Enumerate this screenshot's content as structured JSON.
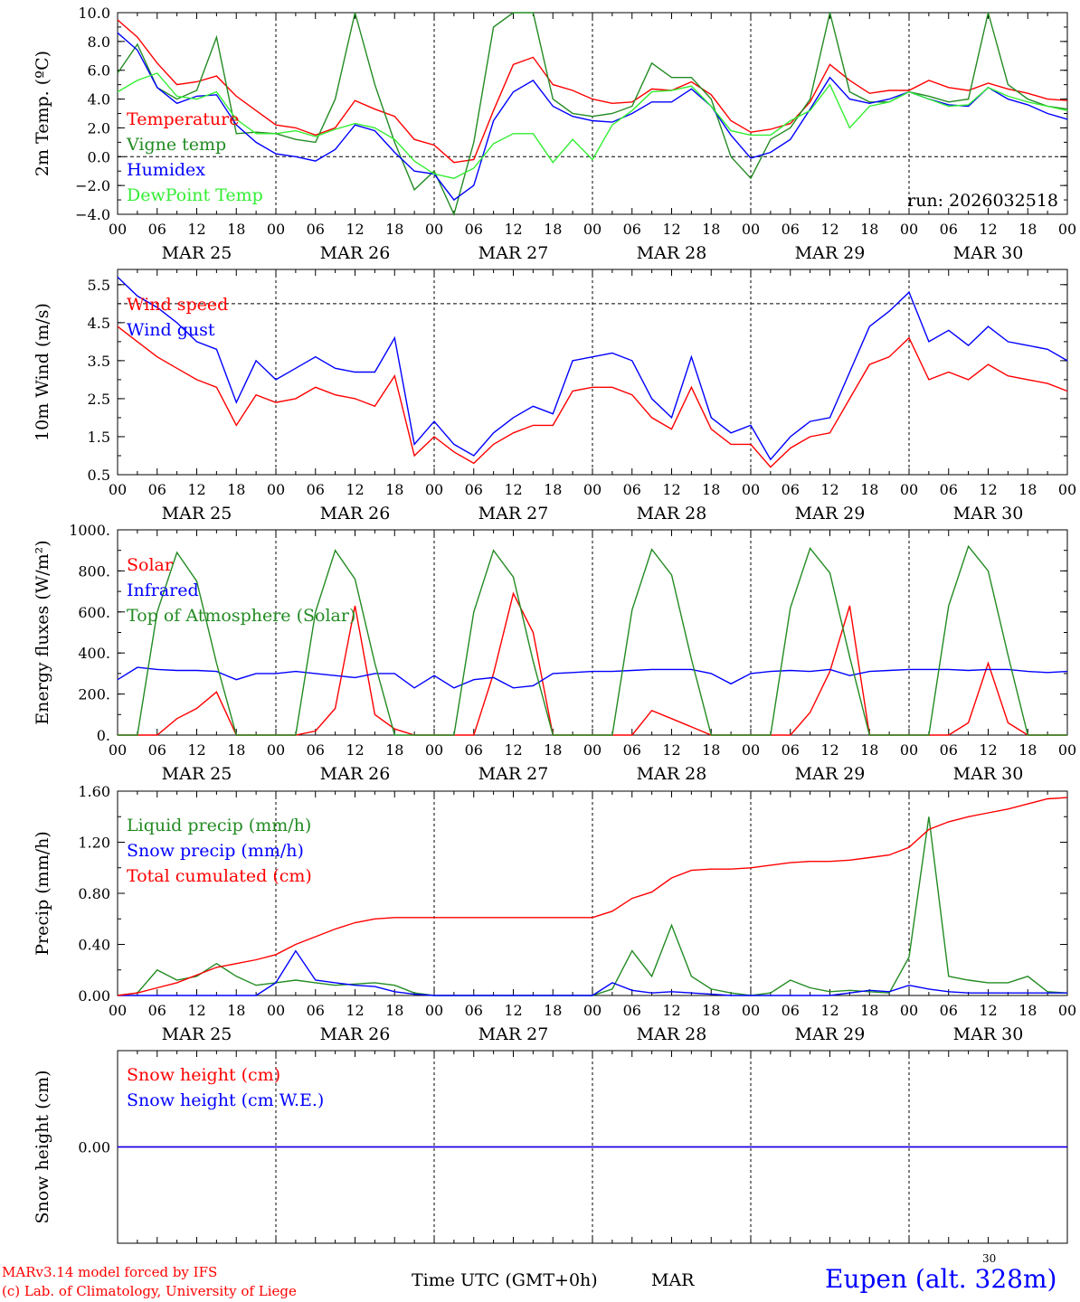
{
  "colors": {
    "red": "#ff0000",
    "green": "#228b22",
    "blue": "#0000ff",
    "lightgreen": "#33ee33",
    "black": "#000000"
  },
  "hour_ticks": [
    "00",
    "06",
    "12",
    "18",
    "00",
    "06",
    "12",
    "18",
    "00",
    "06",
    "12",
    "18",
    "00",
    "06",
    "12",
    "18",
    "00",
    "06",
    "12",
    "18",
    "00",
    "06",
    "12",
    "18",
    "00"
  ],
  "day_labels": [
    "MAR 25",
    "MAR 26",
    "MAR 27",
    "MAR 28",
    "MAR 29",
    "MAR 30"
  ],
  "footer": {
    "model": "MARv3.14 model forced by IFS",
    "lab": "(c) Lab. of Climatology, University of Liege",
    "time_axis": "Time UTC (GMT+0h)",
    "month": "MAR",
    "day_marker": "30",
    "station": "Eupen (alt. 328m)"
  },
  "chart_data": [
    {
      "type": "line",
      "ylabel": "2m Temp. (ºC)",
      "ylim": [
        -4,
        10
      ],
      "yticks": [
        "10.0",
        "8.0",
        "6.0",
        "4.0",
        "2.0",
        "0.0",
        "−2.0",
        "−4.0"
      ],
      "ytick_values": [
        10,
        8,
        6,
        4,
        2,
        0,
        -2,
        -4
      ],
      "ref_line": 0,
      "annotation": "run: 2026032518",
      "x_hours": [
        0,
        3,
        6,
        9,
        12,
        15,
        18,
        21,
        24,
        27,
        30,
        33,
        36,
        39,
        42,
        45,
        48,
        51,
        54,
        57,
        60,
        63,
        66,
        69,
        72,
        75,
        78,
        81,
        84,
        87,
        90,
        93,
        96,
        99,
        102,
        105,
        108,
        111,
        114,
        117,
        120,
        123,
        126,
        129,
        132,
        135,
        138,
        141,
        144
      ],
      "series": [
        {
          "name": "Temperature",
          "color": "red",
          "values": [
            9.5,
            8.3,
            6.5,
            5.0,
            5.2,
            5.6,
            4.2,
            3.2,
            2.2,
            2.0,
            1.5,
            2.0,
            3.9,
            3.3,
            2.8,
            1.2,
            0.8,
            -0.4,
            -0.2,
            3.2,
            6.4,
            6.9,
            5.0,
            4.6,
            4.0,
            3.7,
            3.8,
            4.7,
            4.6,
            5.2,
            4.3,
            2.5,
            1.7,
            1.9,
            2.3,
            3.8,
            6.4,
            5.3,
            4.4,
            4.6,
            4.6,
            5.3,
            4.8,
            4.6,
            5.1,
            4.7,
            4.4,
            4.0,
            3.9
          ]
        },
        {
          "name": "Vigne temp",
          "color": "green",
          "values": [
            5.8,
            7.8,
            4.8,
            4.0,
            4.6,
            8.3,
            1.6,
            1.7,
            1.6,
            1.2,
            1.0,
            4.0,
            10.0,
            5.0,
            1.0,
            -2.3,
            -1.0,
            -4.0,
            1.0,
            9.0,
            10.0,
            10.0,
            4.0,
            3.0,
            2.8,
            3.0,
            3.5,
            6.5,
            5.5,
            5.5,
            4.0,
            0.0,
            -1.5,
            1.2,
            2.0,
            4.0,
            10.0,
            4.5,
            3.8,
            3.8,
            4.5,
            4.2,
            3.8,
            4.0,
            10.0,
            5.0,
            4.0,
            3.5,
            3.3
          ]
        },
        {
          "name": "Humidex",
          "color": "blue",
          "values": [
            8.6,
            7.4,
            4.8,
            3.7,
            4.2,
            4.3,
            2.2,
            1.0,
            0.2,
            0.0,
            -0.3,
            0.5,
            2.2,
            1.8,
            0.3,
            -1.0,
            -1.2,
            -3.0,
            -2.0,
            2.5,
            4.5,
            5.3,
            3.5,
            2.8,
            2.5,
            2.4,
            3.0,
            3.8,
            3.8,
            4.7,
            3.5,
            1.5,
            -0.1,
            0.3,
            1.2,
            3.3,
            5.5,
            4.0,
            3.7,
            4.0,
            4.5,
            4.0,
            3.6,
            3.5,
            4.8,
            4.0,
            3.6,
            3.0,
            2.6
          ]
        },
        {
          "name": "DewPoint Temp",
          "color": "lightgreen",
          "values": [
            4.5,
            5.3,
            5.8,
            4.2,
            4.0,
            4.5,
            2.6,
            1.6,
            1.6,
            1.8,
            1.4,
            1.9,
            2.3,
            2.0,
            1.2,
            -0.3,
            -1.2,
            -1.5,
            -0.8,
            0.9,
            1.6,
            1.6,
            -0.4,
            1.2,
            -0.2,
            2.2,
            3.2,
            4.5,
            4.6,
            4.9,
            3.5,
            1.8,
            1.5,
            1.5,
            2.5,
            3.2,
            5.0,
            2.0,
            3.5,
            3.8,
            4.5,
            4.0,
            3.5,
            3.6,
            4.8,
            4.2,
            3.8,
            3.5,
            3.2
          ]
        }
      ]
    },
    {
      "type": "line",
      "ylabel": "10m Wind (m/s)",
      "ylim": [
        0.5,
        5.9
      ],
      "yticks": [
        "5.5",
        "4.5",
        "3.5",
        "2.5",
        "1.5",
        "0.5"
      ],
      "ytick_values": [
        5.5,
        4.5,
        3.5,
        2.5,
        1.5,
        0.5
      ],
      "ref_line": 5.0,
      "x_hours": [
        0,
        3,
        6,
        9,
        12,
        15,
        18,
        21,
        24,
        27,
        30,
        33,
        36,
        39,
        42,
        45,
        48,
        51,
        54,
        57,
        60,
        63,
        66,
        69,
        72,
        75,
        78,
        81,
        84,
        87,
        90,
        93,
        96,
        99,
        102,
        105,
        108,
        111,
        114,
        117,
        120,
        123,
        126,
        129,
        132,
        135,
        138,
        141,
        144
      ],
      "series": [
        {
          "name": "Wind speed",
          "color": "red",
          "values": [
            4.4,
            4.0,
            3.6,
            3.3,
            3.0,
            2.8,
            1.8,
            2.6,
            2.4,
            2.5,
            2.8,
            2.6,
            2.5,
            2.3,
            3.1,
            1.0,
            1.5,
            1.1,
            0.8,
            1.3,
            1.6,
            1.8,
            1.8,
            2.7,
            2.8,
            2.8,
            2.6,
            2.0,
            1.7,
            2.8,
            1.7,
            1.3,
            1.3,
            0.7,
            1.2,
            1.5,
            1.6,
            2.5,
            3.4,
            3.6,
            4.1,
            3.0,
            3.2,
            3.0,
            3.4,
            3.1,
            3.0,
            2.9,
            2.7
          ]
        },
        {
          "name": "Wind gust",
          "color": "blue",
          "values": [
            5.7,
            5.2,
            4.9,
            4.5,
            4.0,
            3.8,
            2.4,
            3.5,
            3.0,
            3.3,
            3.6,
            3.3,
            3.2,
            3.2,
            4.1,
            1.3,
            1.9,
            1.3,
            1.0,
            1.6,
            2.0,
            2.3,
            2.1,
            3.5,
            3.6,
            3.7,
            3.5,
            2.5,
            2.0,
            3.6,
            2.0,
            1.6,
            1.8,
            0.9,
            1.5,
            1.9,
            2.0,
            3.2,
            4.4,
            4.8,
            5.3,
            4.0,
            4.3,
            3.9,
            4.4,
            4.0,
            3.9,
            3.8,
            3.5
          ]
        }
      ]
    },
    {
      "type": "line",
      "ylabel": "Energy fluxes (W/m²)",
      "ylim": [
        0,
        1000
      ],
      "yticks": [
        "1000.",
        "800.",
        "600.",
        "400.",
        "200.",
        "0."
      ],
      "ytick_values": [
        1000,
        800,
        600,
        400,
        200,
        0
      ],
      "x_hours": [
        0,
        3,
        6,
        9,
        12,
        15,
        18,
        21,
        24,
        27,
        30,
        33,
        36,
        39,
        42,
        45,
        48,
        51,
        54,
        57,
        60,
        63,
        66,
        69,
        72,
        75,
        78,
        81,
        84,
        87,
        90,
        93,
        96,
        99,
        102,
        105,
        108,
        111,
        114,
        117,
        120,
        123,
        126,
        129,
        132,
        135,
        138,
        141,
        144
      ],
      "series": [
        {
          "name": "Solar",
          "color": "red",
          "values": [
            0,
            0,
            0,
            80,
            130,
            210,
            0,
            0,
            0,
            0,
            20,
            130,
            630,
            100,
            30,
            0,
            0,
            0,
            0,
            300,
            690,
            500,
            0,
            0,
            0,
            0,
            0,
            120,
            80,
            40,
            0,
            0,
            0,
            0,
            0,
            110,
            310,
            630,
            0,
            0,
            0,
            0,
            0,
            60,
            350,
            60,
            0,
            0,
            0
          ]
        },
        {
          "name": "Infrared",
          "color": "blue",
          "values": [
            270,
            330,
            320,
            315,
            315,
            310,
            270,
            300,
            300,
            310,
            300,
            290,
            280,
            300,
            300,
            230,
            290,
            230,
            270,
            280,
            230,
            240,
            300,
            305,
            310,
            310,
            315,
            320,
            320,
            320,
            300,
            250,
            300,
            310,
            315,
            310,
            320,
            290,
            310,
            315,
            320,
            320,
            320,
            315,
            320,
            320,
            310,
            305,
            310
          ]
        },
        {
          "name": "Top of Atmosphere (Solar)",
          "color": "green",
          "values": [
            0,
            0,
            600,
            890,
            750,
            350,
            0,
            0,
            0,
            0,
            600,
            900,
            760,
            350,
            0,
            0,
            0,
            0,
            600,
            900,
            770,
            360,
            0,
            0,
            0,
            0,
            610,
            905,
            780,
            370,
            0,
            0,
            0,
            0,
            620,
            910,
            790,
            380,
            0,
            0,
            0,
            0,
            630,
            920,
            800,
            390,
            0,
            0,
            0
          ]
        }
      ]
    },
    {
      "type": "line",
      "ylabel": "Precip (mm/h)",
      "ylim": [
        0,
        1.6
      ],
      "yticks": [
        "1.60",
        "1.20",
        "0.80",
        "0.40",
        "0.00"
      ],
      "ytick_values": [
        1.6,
        1.2,
        0.8,
        0.4,
        0.0
      ],
      "x_hours": [
        0,
        3,
        6,
        9,
        12,
        15,
        18,
        21,
        24,
        27,
        30,
        33,
        36,
        39,
        42,
        45,
        48,
        51,
        54,
        57,
        60,
        63,
        66,
        69,
        72,
        75,
        78,
        81,
        84,
        87,
        90,
        93,
        96,
        99,
        102,
        105,
        108,
        111,
        114,
        117,
        120,
        123,
        126,
        129,
        132,
        135,
        138,
        141,
        144
      ],
      "series": [
        {
          "name": "Liquid precip (mm/h)",
          "color": "green",
          "values": [
            0,
            0.02,
            0.2,
            0.12,
            0.15,
            0.25,
            0.15,
            0.08,
            0.1,
            0.12,
            0.1,
            0.08,
            0.09,
            0.1,
            0.08,
            0.02,
            0,
            0,
            0,
            0,
            0,
            0,
            0,
            0,
            0,
            0.05,
            0.35,
            0.15,
            0.55,
            0.15,
            0.05,
            0.02,
            0,
            0.02,
            0.12,
            0.06,
            0.03,
            0.04,
            0.03,
            0.02,
            0.3,
            1.4,
            0.15,
            0.12,
            0.1,
            0.1,
            0.15,
            0.03,
            0.02
          ]
        },
        {
          "name": "Snow precip (mm/h)",
          "color": "blue",
          "values": [
            0,
            0,
            0,
            0,
            0,
            0,
            0,
            0,
            0.1,
            0.35,
            0.12,
            0.1,
            0.08,
            0.07,
            0.03,
            0.01,
            0,
            0,
            0,
            0,
            0,
            0,
            0,
            0,
            0,
            0.1,
            0.04,
            0.02,
            0.03,
            0.02,
            0.01,
            0,
            0,
            0,
            0,
            0,
            0,
            0.02,
            0.04,
            0.03,
            0.08,
            0.05,
            0.03,
            0.02,
            0.02,
            0.02,
            0.02,
            0.02,
            0.02
          ]
        },
        {
          "name": "Total cumulated (cm)",
          "color": "red",
          "values": [
            0,
            0.02,
            0.06,
            0.1,
            0.16,
            0.22,
            0.25,
            0.28,
            0.32,
            0.4,
            0.46,
            0.52,
            0.57,
            0.6,
            0.61,
            0.61,
            0.61,
            0.61,
            0.61,
            0.61,
            0.61,
            0.61,
            0.61,
            0.61,
            0.61,
            0.66,
            0.76,
            0.81,
            0.92,
            0.98,
            0.99,
            0.99,
            1.0,
            1.02,
            1.04,
            1.05,
            1.05,
            1.06,
            1.08,
            1.1,
            1.16,
            1.3,
            1.36,
            1.4,
            1.43,
            1.46,
            1.5,
            1.54,
            1.55
          ]
        }
      ]
    },
    {
      "type": "line",
      "ylabel": "Snow height (cm)",
      "ylim": [
        -1,
        1
      ],
      "yticks": [
        "0.00"
      ],
      "ytick_values": [
        0
      ],
      "x_hours": [
        0,
        144
      ],
      "series": [
        {
          "name": "Snow height (cm)",
          "color": "red",
          "values": [
            0,
            0
          ]
        },
        {
          "name": "Snow height (cm W.E.)",
          "color": "blue",
          "values": [
            0,
            0
          ]
        }
      ]
    }
  ]
}
